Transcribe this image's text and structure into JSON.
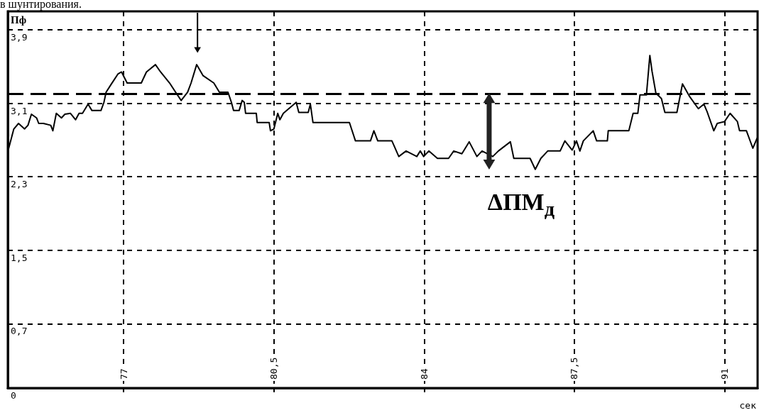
{
  "chart_data": {
    "type": "line",
    "ylabel": "Пф",
    "xlabel": "сек",
    "annotations": [
      "в шунтирования.",
      "ΔПМ$_{д}$"
    ],
    "x": [
      74.31,
      74.44,
      74.55,
      74.69,
      74.77,
      74.85,
      74.97,
      75.02,
      75.13,
      75.3,
      75.35,
      75.43,
      75.55,
      75.63,
      75.76,
      75.88,
      75.96,
      76.04,
      76.17,
      76.26,
      76.47,
      76.54,
      76.59,
      76.7,
      76.87,
      76.95,
      77.08,
      77.41,
      77.53,
      77.74,
      77.86,
      78.07,
      78.21,
      78.34,
      78.49,
      78.57,
      78.7,
      78.85,
      79.1,
      79.23,
      79.43,
      79.51,
      79.56,
      79.69,
      79.76,
      79.81,
      79.84,
      80.09,
      80.11,
      80.39,
      80.42,
      80.5,
      80.59,
      80.64,
      80.72,
      81.02,
      81.08,
      81.3,
      81.35,
      81.41,
      82.26,
      82.4,
      82.75,
      82.83,
      82.92,
      83.25,
      83.41,
      83.58,
      83.83,
      83.91,
      83.99,
      84.11,
      84.31,
      84.57,
      84.69,
      84.88,
      85.05,
      85.23,
      85.35,
      85.6,
      85.73,
      86.01,
      86.09,
      86.47,
      86.59,
      86.72,
      86.88,
      87.17,
      87.28,
      87.45,
      87.55,
      87.63,
      87.71,
      87.94,
      88.02,
      88.27,
      88.29,
      88.77,
      88.87,
      88.98,
      89.03,
      89.18,
      89.26,
      89.31,
      89.4,
      89.53,
      89.61,
      89.89,
      90.02,
      90.19,
      90.39,
      90.52,
      90.6,
      90.75,
      90.83,
      91.0,
      91.13,
      91.3,
      91.35,
      91.51,
      91.66,
      91.76
    ],
    "series": [
      {
        "color": "#000000",
        "values": [
          2.59,
          2.82,
          2.88,
          2.82,
          2.86,
          2.98,
          2.94,
          2.88,
          2.88,
          2.86,
          2.8,
          2.99,
          2.94,
          2.98,
          2.99,
          2.92,
          2.99,
          2.99,
          3.09,
          3.02,
          3.02,
          3.11,
          3.22,
          3.3,
          3.42,
          3.44,
          3.32,
          3.32,
          3.44,
          3.52,
          3.44,
          3.32,
          3.22,
          3.13,
          3.22,
          3.32,
          3.52,
          3.4,
          3.32,
          3.22,
          3.22,
          3.11,
          3.02,
          3.02,
          3.13,
          3.11,
          2.99,
          2.99,
          2.89,
          2.89,
          2.8,
          2.82,
          2.99,
          2.92,
          2.99,
          3.11,
          3.0,
          3.0,
          3.09,
          2.89,
          2.89,
          2.69,
          2.69,
          2.8,
          2.69,
          2.69,
          2.52,
          2.58,
          2.52,
          2.58,
          2.52,
          2.58,
          2.5,
          2.5,
          2.58,
          2.55,
          2.68,
          2.52,
          2.58,
          2.52,
          2.58,
          2.68,
          2.5,
          2.5,
          2.38,
          2.5,
          2.58,
          2.58,
          2.69,
          2.59,
          2.69,
          2.58,
          2.69,
          2.8,
          2.69,
          2.69,
          2.8,
          2.8,
          2.99,
          2.99,
          3.19,
          3.19,
          3.62,
          3.45,
          3.21,
          3.15,
          3.0,
          3.0,
          3.31,
          3.17,
          3.04,
          3.09,
          3.0,
          2.8,
          2.88,
          2.9,
          2.99,
          2.9,
          2.8,
          2.8,
          2.61,
          2.72
        ]
      }
    ],
    "xlim": [
      74.3,
      91.77
    ],
    "xticks": [
      77,
      {
        "value": 80.5,
        "label": "80,5"
      },
      84,
      {
        "value": 87.5,
        "label": "87,5"
      },
      91
    ],
    "ylim": [
      0,
      4.1
    ],
    "yticks": [
      0,
      {
        "value": 0.7,
        "label": "0,7"
      },
      {
        "value": 1.5,
        "label": "1,5"
      },
      {
        "value": 2.3,
        "label": "2,3"
      },
      {
        "value": 3.1,
        "label": "3,1"
      },
      {
        "value": 3.9,
        "label": "3,9"
      }
    ],
    "ref_lines": [
      {
        "axis": "y",
        "value": 3.2,
        "color": "#000000",
        "line_style": "dashed"
      }
    ],
    "grid": true,
    "marker": "none",
    "line_style": "solid"
  }
}
